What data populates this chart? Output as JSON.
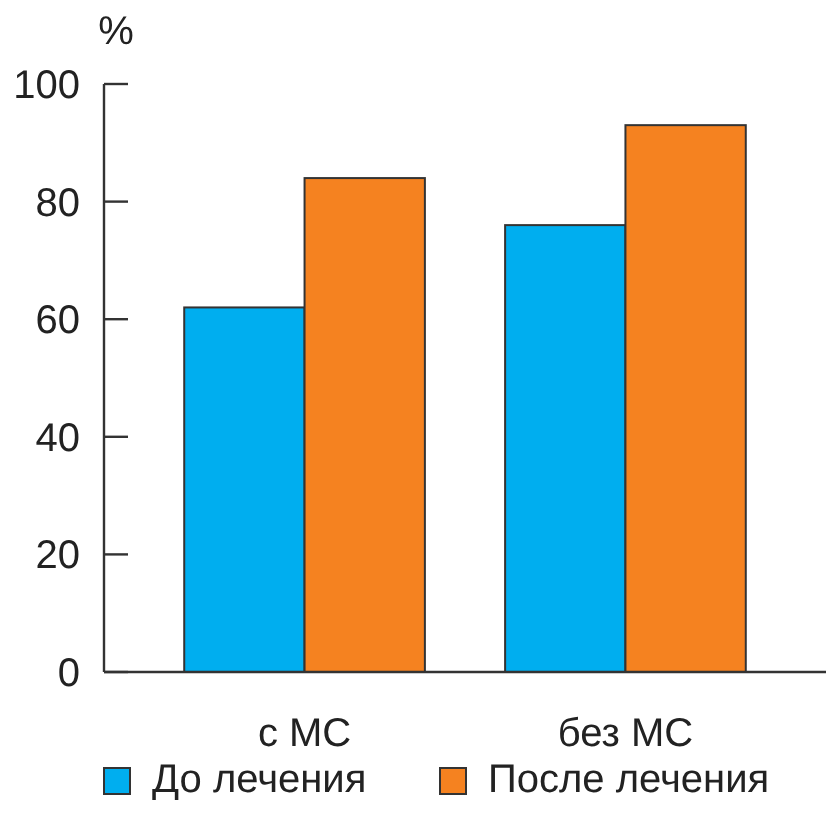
{
  "chart_data": {
    "type": "bar",
    "ylabel": "%",
    "categories": [
      "с МС",
      "без МС"
    ],
    "series": [
      {
        "name": "До лечения",
        "color": "#00aeef",
        "values": [
          62,
          76
        ]
      },
      {
        "name": "После лечения",
        "color": "#f58220",
        "values": [
          84,
          93
        ]
      }
    ],
    "ylim": [
      0,
      100
    ],
    "yticks": [
      0,
      20,
      40,
      60,
      80,
      100
    ],
    "legend": "bottom"
  }
}
